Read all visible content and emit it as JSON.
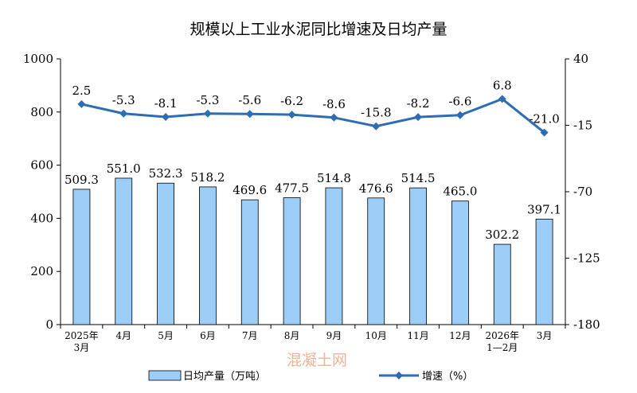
{
  "chart_data": {
    "type": "bar",
    "title": "规模以上工业水泥同比增速及日均产量",
    "categories": [
      [
        "2025年",
        "3月"
      ],
      [
        "4月"
      ],
      [
        "5月"
      ],
      [
        "6月"
      ],
      [
        "7月"
      ],
      [
        "8月"
      ],
      [
        "9月"
      ],
      [
        "10月"
      ],
      [
        "11月"
      ],
      [
        "12月"
      ],
      [
        "2026年",
        "1—2月"
      ],
      [
        "3月"
      ]
    ],
    "series": [
      {
        "name": "日均产量（万吨）",
        "type": "bar",
        "axis": "left",
        "values": [
          509.3,
          551.0,
          532.3,
          518.2,
          469.6,
          477.5,
          514.8,
          476.6,
          514.5,
          465.0,
          302.2,
          397.1
        ],
        "labels": [
          "509.3",
          "551.0",
          "532.3",
          "518.2",
          "469.6",
          "477.5",
          "514.8",
          "476.6",
          "514.5",
          "465.0",
          "302.2",
          "397.1"
        ],
        "color": "#9ccdf6",
        "stroke": "#000000"
      },
      {
        "name": "增速（%）",
        "type": "line",
        "axis": "right",
        "values": [
          2.5,
          -5.3,
          -8.1,
          -5.3,
          -5.6,
          -6.2,
          -8.6,
          -15.8,
          -8.2,
          -6.6,
          6.8,
          -21.0
        ],
        "labels": [
          "2.5",
          "-5.3",
          "-8.1",
          "-5.3",
          "-5.6",
          "-6.2",
          "-8.6",
          "-15.8",
          "-8.2",
          "-6.6",
          "6.8",
          "-21.0"
        ],
        "color": "#2e6db4"
      }
    ],
    "yleft": {
      "lim": [
        0,
        1000
      ],
      "ticks": [
        "0",
        "200",
        "400",
        "600",
        "800",
        "1000"
      ]
    },
    "yright": {
      "lim": [
        -180,
        40
      ],
      "ticks": [
        "-180",
        "-125",
        "-70",
        "-15",
        "40"
      ]
    },
    "grid": false,
    "legend": "bottom"
  },
  "watermark": "混凝土网"
}
